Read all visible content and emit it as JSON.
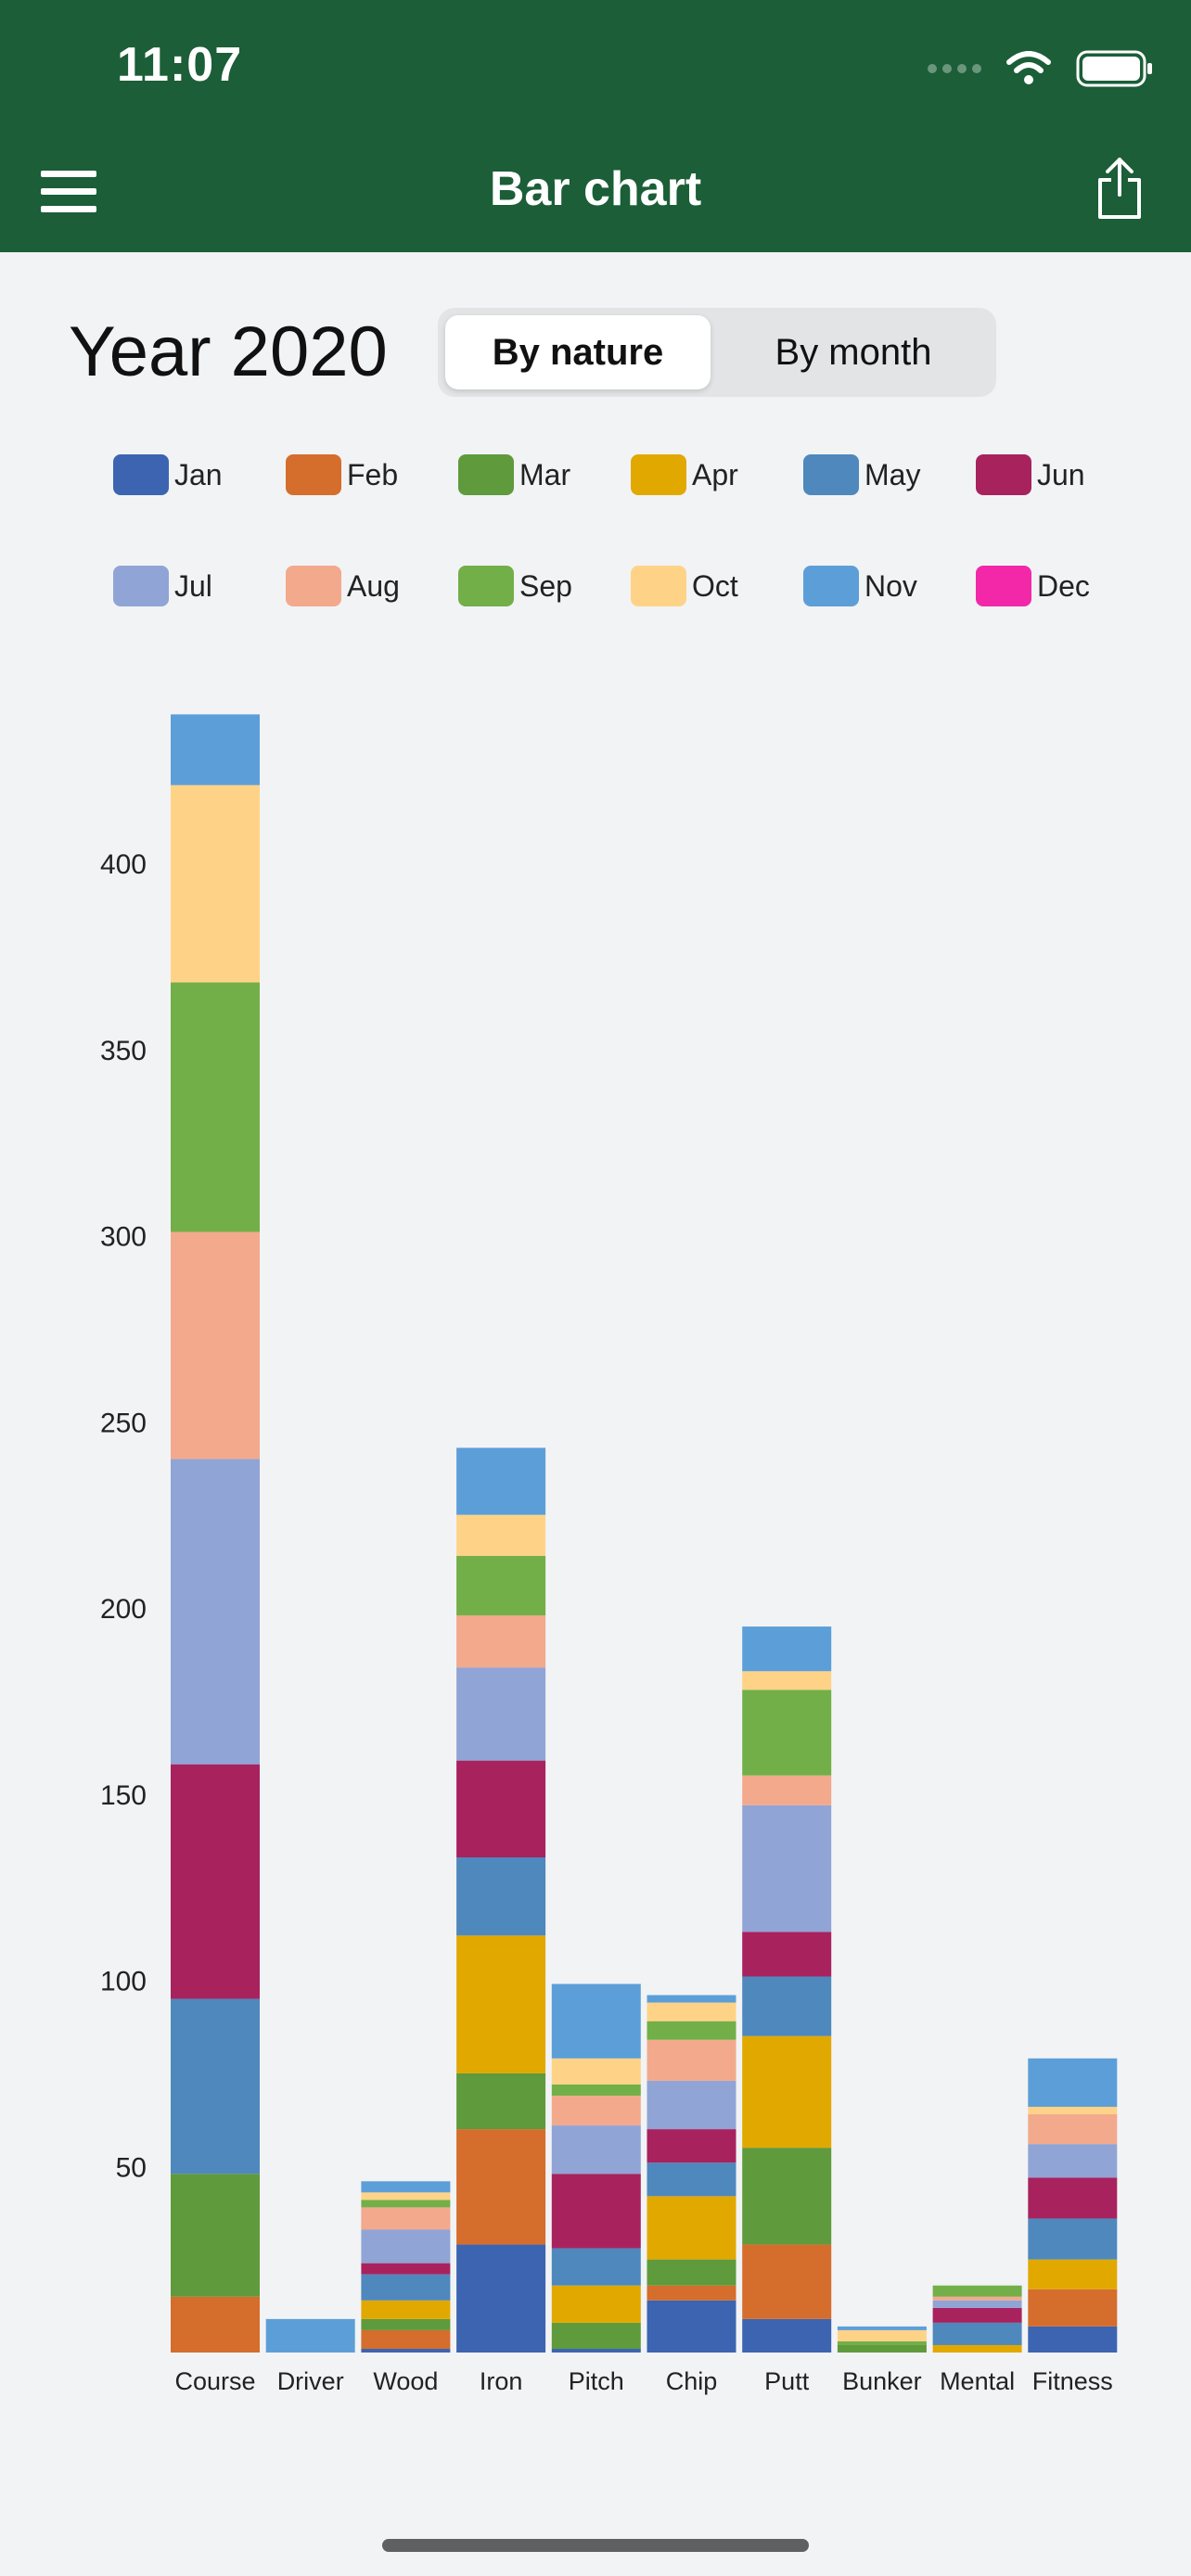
{
  "status_bar": {
    "time": "11:07"
  },
  "nav": {
    "title": "Bar chart"
  },
  "header": {
    "year_title": "Year 2020"
  },
  "segmented": {
    "options": [
      "By nature",
      "By month"
    ],
    "selected": "By nature"
  },
  "colors": {
    "header_bg": "#1b5e37",
    "Jan": "#3c64b1",
    "Feb": "#d56d2c",
    "Mar": "#5f9a3c",
    "Apr": "#e1a800",
    "May": "#4e88bd",
    "Jun": "#a8225e",
    "Jul": "#90a4d6",
    "Aug": "#f2a98c",
    "Sep": "#72af48",
    "Oct": "#ffd387",
    "Nov": "#5c9fd8",
    "Dec": "#f228a9"
  },
  "chart_data": {
    "type": "bar",
    "stacked": true,
    "categories": [
      "Course",
      "Driver",
      "Wood",
      "Iron",
      "Pitch",
      "Chip",
      "Putt",
      "Bunker",
      "Mental",
      "Fitness"
    ],
    "ylim": [
      0,
      445
    ],
    "yticks": [
      50,
      100,
      150,
      200,
      250,
      300,
      350,
      400
    ],
    "legend_position": "top",
    "series": [
      {
        "name": "Jan",
        "values": [
          0,
          0,
          1,
          29,
          1,
          14,
          9,
          0,
          0,
          7
        ]
      },
      {
        "name": "Feb",
        "values": [
          15,
          0,
          5,
          31,
          0,
          4,
          20,
          0,
          0,
          10
        ]
      },
      {
        "name": "Mar",
        "values": [
          33,
          0,
          3,
          15,
          7,
          7,
          26,
          2,
          0,
          0
        ]
      },
      {
        "name": "Apr",
        "values": [
          0,
          0,
          5,
          37,
          10,
          17,
          30,
          0,
          2,
          8
        ]
      },
      {
        "name": "May",
        "values": [
          47,
          0,
          7,
          21,
          10,
          9,
          16,
          0,
          6,
          11
        ]
      },
      {
        "name": "Jun",
        "values": [
          63,
          0,
          3,
          26,
          20,
          9,
          12,
          0,
          4,
          11
        ]
      },
      {
        "name": "Jul",
        "values": [
          82,
          0,
          9,
          25,
          13,
          13,
          34,
          0,
          2,
          9
        ]
      },
      {
        "name": "Aug",
        "values": [
          61,
          0,
          6,
          14,
          8,
          11,
          8,
          0,
          1,
          8
        ]
      },
      {
        "name": "Sep",
        "values": [
          67,
          0,
          2,
          16,
          3,
          5,
          23,
          1,
          3,
          0
        ]
      },
      {
        "name": "Oct",
        "values": [
          53,
          0,
          2,
          11,
          7,
          5,
          5,
          3,
          0,
          2
        ]
      },
      {
        "name": "Nov",
        "values": [
          19,
          9,
          3,
          18,
          20,
          2,
          12,
          1,
          0,
          13
        ]
      },
      {
        "name": "Dec",
        "values": [
          0,
          0,
          0,
          0,
          0,
          0,
          0,
          0,
          0,
          0
        ]
      }
    ]
  }
}
